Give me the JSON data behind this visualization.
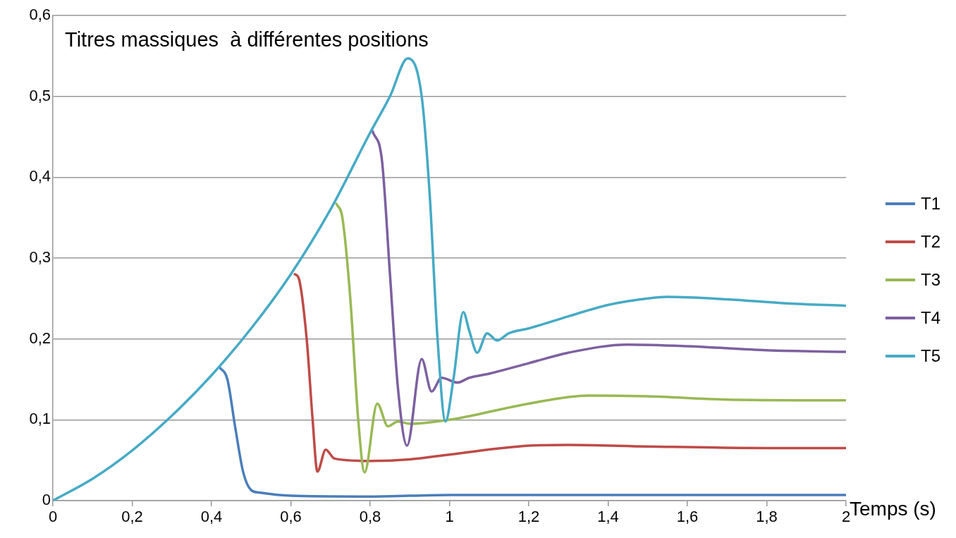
{
  "chart_data": {
    "type": "line",
    "title": "Titres massiques  à différentes positions",
    "xlabel": "Temps (s)",
    "xlim": [
      0,
      2
    ],
    "ylim": [
      0,
      0.6
    ],
    "xticks": [
      0,
      {
        "value": 0.2,
        "label": "0,2"
      },
      {
        "value": 0.4,
        "label": "0,4"
      },
      {
        "value": 0.6,
        "label": "0,6"
      },
      {
        "value": 0.8,
        "label": "0,8"
      },
      1,
      {
        "value": 1.2,
        "label": "1,2"
      },
      {
        "value": 1.4,
        "label": "1,4"
      },
      {
        "value": 1.6,
        "label": "1,6"
      },
      {
        "value": 1.8,
        "label": "1,8"
      },
      2
    ],
    "yticks": [
      0,
      {
        "value": 0.1,
        "label": "0,1"
      },
      {
        "value": 0.2,
        "label": "0,2"
      },
      {
        "value": 0.3,
        "label": "0,3"
      },
      {
        "value": 0.4,
        "label": "0,4"
      },
      {
        "value": 0.5,
        "label": "0,5"
      },
      {
        "value": 0.6,
        "label": "0,6"
      }
    ],
    "grid": "y",
    "legend": "right",
    "marker": "none",
    "line_style": "solid",
    "series": [
      {
        "name": "T1",
        "color": "#4a7ebb",
        "x": [
          0.42,
          0.44,
          0.46,
          0.48,
          0.5,
          0.52,
          0.6,
          0.8,
          1.0,
          1.4,
          2.0
        ],
        "values": [
          0.165,
          0.15,
          0.09,
          0.035,
          0.013,
          0.01,
          0.006,
          0.005,
          0.007,
          0.007,
          0.007
        ]
      },
      {
        "name": "T2",
        "color": "#be4b48",
        "x": [
          0.61,
          0.62,
          0.64,
          0.655,
          0.667,
          0.688,
          0.71,
          0.8,
          0.9,
          1.0,
          1.2,
          1.3,
          1.5,
          1.8,
          2.0
        ],
        "values": [
          0.28,
          0.275,
          0.2,
          0.1,
          0.036,
          0.063,
          0.052,
          0.049,
          0.051,
          0.057,
          0.068,
          0.069,
          0.067,
          0.065,
          0.065
        ]
      },
      {
        "name": "T3",
        "color": "#98b954",
        "x": [
          0.715,
          0.73,
          0.75,
          0.77,
          0.786,
          0.818,
          0.845,
          0.87,
          0.9,
          1.0,
          1.2,
          1.35,
          1.5,
          1.7,
          2.0
        ],
        "values": [
          0.367,
          0.35,
          0.25,
          0.1,
          0.035,
          0.12,
          0.092,
          0.098,
          0.095,
          0.1,
          0.12,
          0.13,
          0.129,
          0.125,
          0.124
        ]
      },
      {
        "name": "T4",
        "color": "#7d60a0",
        "x": [
          0.806,
          0.83,
          0.85,
          0.87,
          0.893,
          0.93,
          0.955,
          0.98,
          1.02,
          1.05,
          1.1,
          1.2,
          1.3,
          1.45,
          1.6,
          1.8,
          2.0
        ],
        "values": [
          0.457,
          0.42,
          0.28,
          0.14,
          0.068,
          0.175,
          0.135,
          0.152,
          0.146,
          0.152,
          0.157,
          0.17,
          0.183,
          0.193,
          0.191,
          0.186,
          0.184
        ]
      },
      {
        "name": "T5",
        "color": "#46aac5",
        "x": [
          0,
          0.1,
          0.2,
          0.3,
          0.4,
          0.5,
          0.6,
          0.7,
          0.8,
          0.85,
          0.895,
          0.93,
          0.95,
          0.97,
          0.99,
          1.01,
          1.035,
          1.05,
          1.07,
          1.095,
          1.12,
          1.15,
          1.2,
          1.3,
          1.4,
          1.5,
          1.55,
          1.7,
          1.85,
          2.0
        ],
        "values": [
          0,
          0.027,
          0.062,
          0.105,
          0.155,
          0.213,
          0.28,
          0.36,
          0.455,
          0.5,
          0.547,
          0.5,
          0.38,
          0.2,
          0.098,
          0.15,
          0.233,
          0.21,
          0.183,
          0.207,
          0.198,
          0.207,
          0.213,
          0.228,
          0.242,
          0.25,
          0.252,
          0.249,
          0.244,
          0.241
        ]
      }
    ]
  }
}
